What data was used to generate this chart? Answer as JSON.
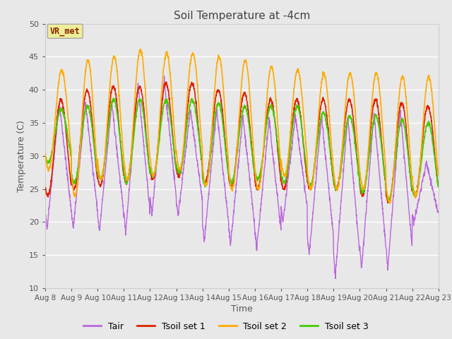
{
  "title": "Soil Temperature at -4cm",
  "xlabel": "Time",
  "ylabel": "Temperature (C)",
  "ylim": [
    10,
    50
  ],
  "yticks": [
    10,
    15,
    20,
    25,
    30,
    35,
    40,
    45,
    50
  ],
  "fig_bg_color": "#e8e8e8",
  "plot_bg_color": "#e8e8e8",
  "grid_color": "white",
  "line_colors": {
    "Tair": "#bb66dd",
    "Tsoil1": "#dd2200",
    "Tsoil2": "#ffaa00",
    "Tsoil3": "#44cc00"
  },
  "legend_labels": [
    "Tair",
    "Tsoil set 1",
    "Tsoil set 2",
    "Tsoil set 3"
  ],
  "annotation_text": "VR_met",
  "annotation_color": "#882200",
  "annotation_bg": "#eeee99",
  "annotation_border": "#aaaaaa",
  "start_day": 8,
  "end_day": 23,
  "n_days": 15,
  "points_per_day": 144
}
